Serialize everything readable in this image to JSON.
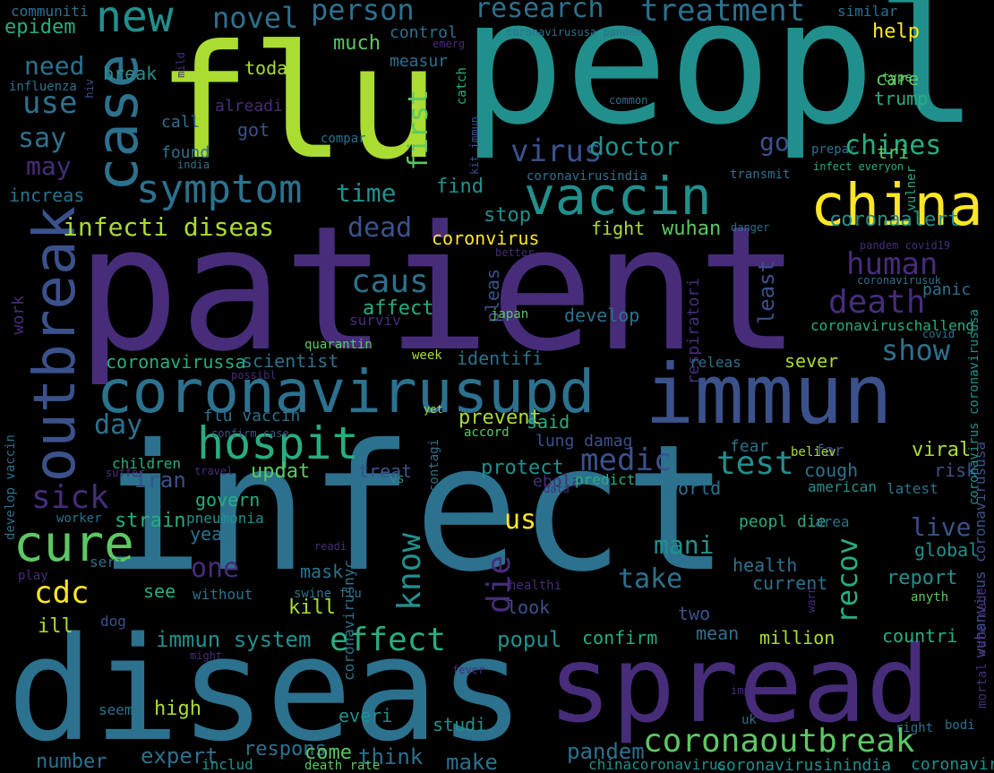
{
  "palette": {
    "background": "#000000",
    "colors": [
      "#440154",
      "#472c7a",
      "#3b518b",
      "#2c718e",
      "#21908d",
      "#27ad81",
      "#5cc863",
      "#aadc32",
      "#fde725"
    ]
  },
  "words": [
    {
      "t": "peopl",
      "c": 4
    },
    {
      "t": "flu",
      "c": 7
    },
    {
      "t": "patient",
      "c": 1
    },
    {
      "t": "infect",
      "c": 3
    },
    {
      "t": "diseas",
      "c": 3
    },
    {
      "t": "spread",
      "c": 1
    },
    {
      "t": "immun",
      "c": 2
    },
    {
      "t": "coronavirusupd",
      "c": 3
    },
    {
      "t": "china",
      "c": 8
    },
    {
      "t": "vaccin",
      "c": 4
    },
    {
      "t": "hospit",
      "c": 5
    },
    {
      "t": "outbreak",
      "c": 2
    },
    {
      "t": "case",
      "c": 3
    },
    {
      "t": "symptom",
      "c": 3
    },
    {
      "t": "cure",
      "c": 6
    },
    {
      "t": "coronaoutbreak",
      "c": 6
    },
    {
      "t": "new",
      "c": 4
    },
    {
      "t": "novel",
      "c": 3
    },
    {
      "t": "person",
      "c": 3
    },
    {
      "t": "research",
      "c": 3
    },
    {
      "t": "treatment",
      "c": 3
    },
    {
      "t": "death",
      "c": 1
    },
    {
      "t": "human",
      "c": 1
    },
    {
      "t": "test",
      "c": 4
    },
    {
      "t": "medic",
      "c": 2
    },
    {
      "t": "effect",
      "c": 5
    },
    {
      "t": "sick",
      "c": 1
    },
    {
      "t": "know",
      "c": 4
    },
    {
      "t": "die",
      "c": 1
    },
    {
      "t": "recov",
      "c": 5
    },
    {
      "t": "cdc",
      "c": 8
    },
    {
      "t": "us",
      "c": 8
    },
    {
      "t": "one",
      "c": 1
    },
    {
      "t": "caus",
      "c": 3
    },
    {
      "t": "show",
      "c": 3
    },
    {
      "t": "virus",
      "c": 2
    },
    {
      "t": "doctor",
      "c": 4
    },
    {
      "t": "chines",
      "c": 5
    },
    {
      "t": "go",
      "c": 2
    },
    {
      "t": "time",
      "c": 4
    },
    {
      "t": "infecti diseas",
      "c": 7
    },
    {
      "t": "dead",
      "c": 2
    },
    {
      "t": "need",
      "c": 3
    },
    {
      "t": "use",
      "c": 3
    },
    {
      "t": "say",
      "c": 3
    },
    {
      "t": "may",
      "c": 1
    },
    {
      "t": "first",
      "c": 6
    },
    {
      "t": "day",
      "c": 3
    },
    {
      "t": "take",
      "c": 3
    },
    {
      "t": "mani",
      "c": 4
    },
    {
      "t": "live",
      "c": 2
    },
    {
      "t": "immun system",
      "c": 4
    },
    {
      "t": "popul",
      "c": 4
    },
    {
      "t": "confirm",
      "c": 5
    },
    {
      "t": "mean",
      "c": 3
    },
    {
      "t": "million",
      "c": 7
    },
    {
      "t": "countri",
      "c": 5
    },
    {
      "t": "report",
      "c": 4
    },
    {
      "t": "cough",
      "c": 3
    },
    {
      "t": "world",
      "c": 3
    },
    {
      "t": "risk",
      "c": 2
    },
    {
      "t": "viral",
      "c": 7
    },
    {
      "t": "fear",
      "c": 3
    },
    {
      "t": "far",
      "c": 2
    },
    {
      "t": "global",
      "c": 4
    },
    {
      "t": "health",
      "c": 3
    },
    {
      "t": "current",
      "c": 3
    },
    {
      "t": "two",
      "c": 2
    },
    {
      "t": "kill",
      "c": 7
    },
    {
      "t": "see",
      "c": 5
    },
    {
      "t": "mask",
      "c": 3
    },
    {
      "t": "year",
      "c": 3
    },
    {
      "t": "strain",
      "c": 5
    },
    {
      "t": "govern",
      "c": 5
    },
    {
      "t": "iran",
      "c": 2
    },
    {
      "t": "treat",
      "c": 2
    },
    {
      "t": "updat",
      "c": 6
    },
    {
      "t": "protect",
      "c": 4
    },
    {
      "t": "prevent",
      "c": 7
    },
    {
      "t": "said",
      "c": 5
    },
    {
      "t": "flu vaccin",
      "c": 3
    },
    {
      "t": "scientist",
      "c": 3
    },
    {
      "t": "identifi",
      "c": 3
    },
    {
      "t": "coronavirussa",
      "c": 5
    },
    {
      "t": "sever",
      "c": 7
    },
    {
      "t": "respiratori",
      "c": 1
    },
    {
      "t": "least",
      "c": 2
    },
    {
      "t": "panic",
      "c": 3
    },
    {
      "t": "work",
      "c": 1
    },
    {
      "t": "affect",
      "c": 5
    },
    {
      "t": "surviv",
      "c": 1
    },
    {
      "t": "develop",
      "c": 3
    },
    {
      "t": "pleas",
      "c": 2
    },
    {
      "t": "stop",
      "c": 4
    },
    {
      "t": "find",
      "c": 4
    },
    {
      "t": "fight",
      "c": 7
    },
    {
      "t": "wuhan",
      "c": 6
    },
    {
      "t": "coronvirus",
      "c": 8
    },
    {
      "t": "coronaalert",
      "c": 4
    },
    {
      "t": "increas",
      "c": 3
    },
    {
      "t": "got",
      "c": 2
    },
    {
      "t": "alreadi",
      "c": 1
    },
    {
      "t": "found",
      "c": 3
    },
    {
      "t": "call",
      "c": 3
    },
    {
      "t": "much",
      "c": 6
    },
    {
      "t": "control",
      "c": 3
    },
    {
      "t": "emerg",
      "c": 1
    },
    {
      "t": "measur",
      "c": 3
    },
    {
      "t": "catch",
      "c": 5
    },
    {
      "t": "help",
      "c": 8
    },
    {
      "t": "care",
      "c": 6
    },
    {
      "t": "trump",
      "c": 5
    },
    {
      "t": "type",
      "c": 6
    },
    {
      "t": "tri",
      "c": 6
    },
    {
      "t": "similar",
      "c": 3
    },
    {
      "t": "communiti",
      "c": 3
    },
    {
      "t": "epidem",
      "c": 5
    },
    {
      "t": "break",
      "c": 4
    },
    {
      "t": "today",
      "c": 7
    },
    {
      "t": "influenza",
      "c": 3
    },
    {
      "t": "mild",
      "c": 1
    },
    {
      "t": "hiv",
      "c": 2
    },
    {
      "t": "compar",
      "c": 3
    },
    {
      "t": "india",
      "c": 3
    },
    {
      "t": "common",
      "c": 3
    },
    {
      "t": "kit immun",
      "c": 2
    },
    {
      "t": "coronavirususa pandem",
      "c": 3
    },
    {
      "t": "coronavirusindia",
      "c": 3
    },
    {
      "t": "transmit",
      "c": 3
    },
    {
      "t": "infect everyon",
      "c": 5
    },
    {
      "t": "prepar",
      "c": 3
    },
    {
      "t": "vulner",
      "c": 5
    },
    {
      "t": "danger",
      "c": 3
    },
    {
      "t": "pandem covid19",
      "c": 1
    },
    {
      "t": "better",
      "c": 1
    },
    {
      "t": "coronavirusuk",
      "c": 3
    },
    {
      "t": "coronaviruschalleng",
      "c": 5
    },
    {
      "t": "coronavirus coronavirususa",
      "c": 4
    },
    {
      "t": "covid",
      "c": 3
    },
    {
      "t": "releas",
      "c": 3
    },
    {
      "t": "confirm case",
      "c": 2
    },
    {
      "t": "japan",
      "c": 6
    },
    {
      "t": "quarantin",
      "c": 6
    },
    {
      "t": "possibl",
      "c": 1
    },
    {
      "t": "week",
      "c": 7
    },
    {
      "t": "develop vaccin",
      "c": 3
    },
    {
      "t": "children",
      "c": 5
    },
    {
      "t": "suffer",
      "c": 1
    },
    {
      "t": "travel",
      "c": 1
    },
    {
      "t": "contagi",
      "c": 3
    },
    {
      "t": "vs",
      "c": 4
    },
    {
      "t": "yet",
      "c": 7
    },
    {
      "t": "accord",
      "c": 6
    },
    {
      "t": "lung damag",
      "c": 2
    },
    {
      "t": "ebola",
      "c": 1
    },
    {
      "t": "data",
      "c": 1
    },
    {
      "t": "predict",
      "c": 5
    },
    {
      "t": "believ",
      "c": 7
    },
    {
      "t": "american",
      "c": 4
    },
    {
      "t": "latest",
      "c": 3
    },
    {
      "t": "wuhanvirus coronavirususa",
      "c": 2
    },
    {
      "t": "worker",
      "c": 3
    },
    {
      "t": "pneumonia",
      "c": 4
    },
    {
      "t": "peopl die",
      "c": 5
    },
    {
      "t": "area",
      "c": 3
    },
    {
      "t": "coronavirusnyc",
      "c": 3
    },
    {
      "t": "readi",
      "c": 1
    },
    {
      "t": "serious",
      "c": 3
    },
    {
      "t": "play",
      "c": 1
    },
    {
      "t": "without",
      "c": 3
    },
    {
      "t": "swine flu",
      "c": 3
    },
    {
      "t": "healthi",
      "c": 1
    },
    {
      "t": "look",
      "c": 2
    },
    {
      "t": "anyth",
      "c": 6
    },
    {
      "t": "mortal rate made",
      "c": 1
    },
    {
      "t": "warn",
      "c": 1
    },
    {
      "t": "dog",
      "c": 2
    },
    {
      "t": "ill",
      "c": 7
    },
    {
      "t": "might",
      "c": 1
    },
    {
      "t": "fever",
      "c": 1
    },
    {
      "t": "import",
      "c": 1
    },
    {
      "t": "uk",
      "c": 3
    },
    {
      "t": "seem",
      "c": 3
    },
    {
      "t": "high",
      "c": 7
    },
    {
      "t": "everi",
      "c": 4
    },
    {
      "t": "studi",
      "c": 4
    },
    {
      "t": "right",
      "c": 3
    },
    {
      "t": "bodi",
      "c": 3
    },
    {
      "t": "expert",
      "c": 3
    },
    {
      "t": "respons",
      "c": 3
    },
    {
      "t": "come",
      "c": 6
    },
    {
      "t": "think",
      "c": 3
    },
    {
      "t": "make",
      "c": 3
    },
    {
      "t": "pandem",
      "c": 3
    },
    {
      "t": "number",
      "c": 3
    },
    {
      "t": "includ",
      "c": 4
    },
    {
      "t": "death rate",
      "c": 6
    },
    {
      "t": "chinacoronavirus",
      "c": 4
    },
    {
      "t": "coronavirusinindia",
      "c": 4
    },
    {
      "t": "coronaviru",
      "c": 4
    }
  ]
}
